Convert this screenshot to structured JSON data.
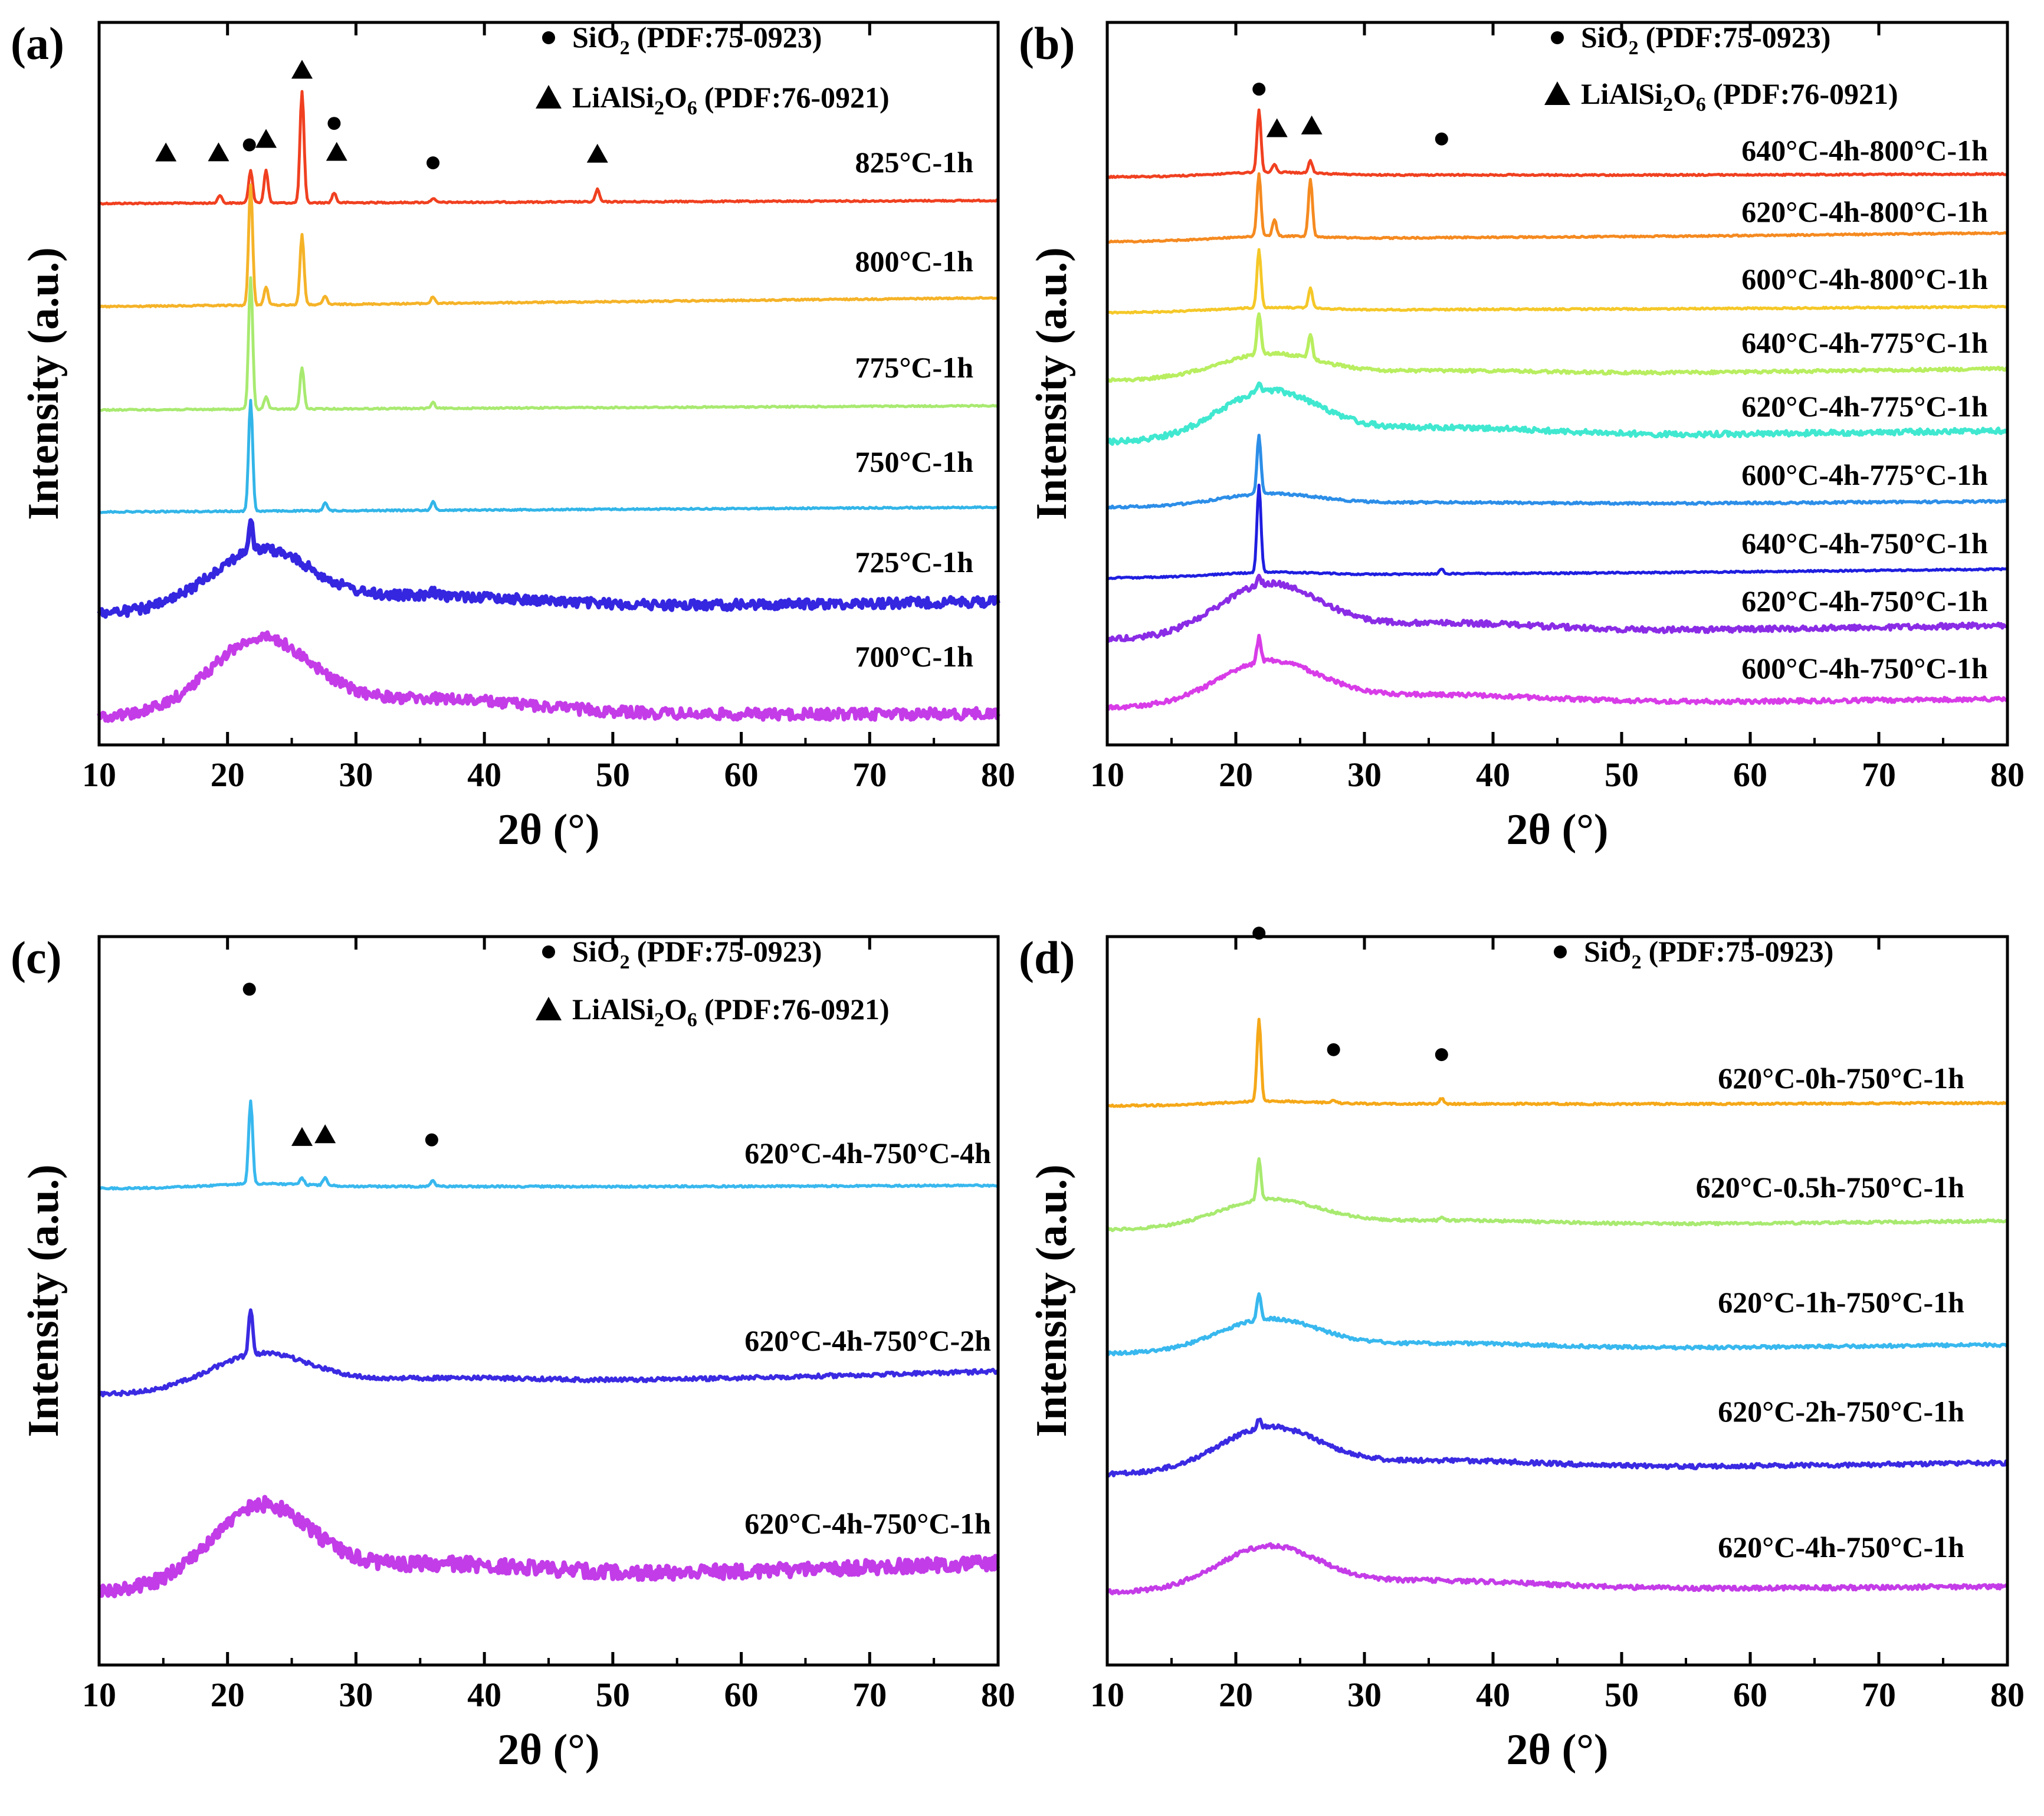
{
  "chart_data": [
    {
      "type": "line",
      "panel": "(a)",
      "xlabel": "2θ (°)",
      "ylabel": "Intensity (a.u.)",
      "xlim": [
        10,
        80
      ],
      "xticks": [
        10,
        20,
        30,
        40,
        50,
        60,
        70,
        80
      ],
      "legend": [
        {
          "marker": "●",
          "name": "SiO",
          "sub": "2",
          "ref": "(PDF:75-0923)"
        },
        {
          "marker": "▲",
          "name": "LiAlSi",
          "sub": "2",
          "name2": "O",
          "sub2": "6",
          "ref": "(PDF:76-0921)"
        }
      ],
      "series": [
        {
          "name": "825°C-1h",
          "color": "#f04020",
          "noise": 0.3,
          "amorph": 0.0,
          "peaks": [
            [
              21.8,
              0.4
            ],
            [
              25.8,
              1.35
            ],
            [
              23.0,
              0.4
            ],
            [
              19.4,
              0.1
            ],
            [
              28.3,
              0.12
            ],
            [
              36.0,
              0.05
            ],
            [
              48.8,
              0.15
            ]
          ],
          "markers": [
            {
              "x": 15.2,
              "type": "tri",
              "level": 1
            },
            {
              "x": 19.3,
              "type": "tri",
              "level": 1
            },
            {
              "x": 21.7,
              "type": "dot",
              "level": 1.3
            },
            {
              "x": 23.0,
              "type": "tri",
              "level": 1.5
            },
            {
              "x": 25.8,
              "type": "tri",
              "level": 4.1
            },
            {
              "x": 28.3,
              "type": "dot",
              "level": 2.1
            },
            {
              "x": 28.5,
              "type": "tri",
              "level": 1
            },
            {
              "x": 36.0,
              "type": "dot",
              "level": 0.6
            },
            {
              "x": 48.8,
              "type": "tri",
              "level": 0.9
            }
          ]
        },
        {
          "name": "800°C-1h",
          "color": "#f5b328",
          "noise": 0.3,
          "amorph": 0.0,
          "peaks": [
            [
              21.8,
              1.45
            ],
            [
              25.8,
              0.85
            ],
            [
              23.0,
              0.22
            ],
            [
              27.6,
              0.1
            ],
            [
              36.0,
              0.08
            ]
          ]
        },
        {
          "name": "775°C-1h",
          "color": "#a8ea70",
          "noise": 0.3,
          "amorph": 0.0,
          "peaks": [
            [
              21.8,
              1.6
            ],
            [
              25.8,
              0.5
            ],
            [
              23.0,
              0.15
            ],
            [
              36.0,
              0.07
            ]
          ]
        },
        {
          "name": "750°C-1h",
          "color": "#32b5e8",
          "noise": 0.3,
          "amorph": 0.0,
          "peaks": [
            [
              21.8,
              1.35
            ],
            [
              27.6,
              0.1
            ],
            [
              36.0,
              0.1
            ]
          ]
        },
        {
          "name": "725°C-1h",
          "color": "#3526e0",
          "noise": 1.2,
          "amorph": 0.75,
          "peaks": [
            [
              21.8,
              0.35
            ],
            [
              36.0,
              0.05
            ]
          ]
        },
        {
          "name": "700°C-1h",
          "color": "#c43ce8",
          "noise": 1.2,
          "amorph": 0.95,
          "peaks": []
        }
      ]
    },
    {
      "type": "line",
      "panel": "(b)",
      "xlabel": "2θ (°)",
      "ylabel": "Intensity (a.u.)",
      "xlim": [
        10,
        80
      ],
      "xticks": [
        10,
        20,
        30,
        40,
        50,
        60,
        70,
        80
      ],
      "legend": [
        {
          "marker": "●",
          "name": "SiO",
          "sub": "2",
          "ref": "(PDF:75-0923)"
        },
        {
          "marker": "▲",
          "name": "LiAlSi",
          "sub": "2",
          "name2": "O",
          "sub2": "6",
          "ref": "(PDF:76-0921)"
        }
      ],
      "series": [
        {
          "name": "640°C-4h-800°C-1h",
          "color": "#f04020",
          "noise": 0.3,
          "amorph": 0.05,
          "peaks": [
            [
              21.8,
              0.75
            ],
            [
              25.8,
              0.15
            ],
            [
              23.0,
              0.1
            ]
          ],
          "markers": [
            {
              "x": 21.8,
              "type": "dot",
              "level": 2.4
            },
            {
              "x": 23.2,
              "type": "tri",
              "level": 0.9
            },
            {
              "x": 25.9,
              "type": "tri",
              "level": 1.0
            },
            {
              "x": 36.0,
              "type": "dot",
              "level": 0.5
            }
          ]
        },
        {
          "name": "620°C-4h-800°C-1h",
          "color": "#f58a20",
          "noise": 0.3,
          "amorph": 0.05,
          "peaks": [
            [
              21.8,
              0.75
            ],
            [
              25.8,
              0.7
            ],
            [
              23.0,
              0.2
            ]
          ]
        },
        {
          "name": "600°C-4h-800°C-1h",
          "color": "#f5c828",
          "noise": 0.3,
          "amorph": 0.05,
          "peaks": [
            [
              21.8,
              0.7
            ],
            [
              25.8,
              0.25
            ]
          ]
        },
        {
          "name": "640°C-4h-775°C-1h",
          "color": "#b8ee60",
          "noise": 0.5,
          "amorph": 0.3,
          "peaks": [
            [
              21.8,
              0.5
            ],
            [
              25.8,
              0.3
            ]
          ]
        },
        {
          "name": "620°C-4h-775°C-1h",
          "color": "#40e8d0",
          "noise": 0.7,
          "amorph": 0.6,
          "peaks": [
            [
              21.8,
              0.1
            ]
          ]
        },
        {
          "name": "600°C-4h-775°C-1h",
          "color": "#2c8ee8",
          "noise": 0.4,
          "amorph": 0.15,
          "peaks": [
            [
              21.8,
              0.7
            ]
          ]
        },
        {
          "name": "640°C-4h-750°C-1h",
          "color": "#1f1ee0",
          "noise": 0.3,
          "amorph": 0.05,
          "peaks": [
            [
              21.8,
              1.05
            ],
            [
              36.0,
              0.06
            ]
          ]
        },
        {
          "name": "620°C-4h-750°C-1h",
          "color": "#8a2ce6",
          "noise": 0.7,
          "amorph": 0.65,
          "peaks": [
            [
              21.8,
              0.1
            ]
          ]
        },
        {
          "name": "600°C-4h-750°C-1h",
          "color": "#d83ce8",
          "noise": 0.6,
          "amorph": 0.55,
          "peaks": [
            [
              21.8,
              0.3
            ]
          ]
        }
      ]
    },
    {
      "type": "line",
      "panel": "(c)",
      "xlabel": "2θ (°)",
      "ylabel": "Intensity (a.u.)",
      "xlim": [
        10,
        80
      ],
      "xticks": [
        10,
        20,
        30,
        40,
        50,
        60,
        70,
        80
      ],
      "legend": [
        {
          "marker": "●",
          "name": "SiO",
          "sub": "2",
          "ref": "(PDF:75-0923)"
        },
        {
          "marker": "▲",
          "name": "LiAlSi",
          "sub": "2",
          "name2": "O",
          "sub2": "6",
          "ref": "(PDF:76-0921)"
        }
      ],
      "series": [
        {
          "name": "620°C-4h-750°C-4h",
          "color": "#38b8ee",
          "noise": 0.35,
          "amorph": 0.05,
          "peaks": [
            [
              21.8,
              1.0
            ],
            [
              25.8,
              0.08
            ],
            [
              27.6,
              0.1
            ],
            [
              36.0,
              0.08
            ]
          ],
          "markers": [
            {
              "x": 21.7,
              "type": "dot",
              "level": 6.6
            },
            {
              "x": 25.8,
              "type": "tri",
              "level": 1.0
            },
            {
              "x": 27.6,
              "type": "tri",
              "level": 1.1
            },
            {
              "x": 35.9,
              "type": "dot",
              "level": 0.9
            }
          ]
        },
        {
          "name": "620°C-4h-750°C-2h",
          "color": "#3a2ae2",
          "noise": 0.6,
          "amorph": 0.45,
          "peaks": [
            [
              21.8,
              0.55
            ]
          ]
        },
        {
          "name": "620°C-4h-750°C-1h",
          "color": "#c23ce8",
          "noise": 1.5,
          "amorph": 1.0,
          "peaks": []
        }
      ]
    },
    {
      "type": "line",
      "panel": "(d)",
      "xlabel": "2θ (°)",
      "ylabel": "Intensity (a.u.)",
      "xlim": [
        10,
        80
      ],
      "xticks": [
        10,
        20,
        30,
        40,
        50,
        60,
        70,
        80
      ],
      "legend": [
        {
          "marker": "●",
          "name": "SiO",
          "sub": "2",
          "ref": "(PDF:75-0923)"
        }
      ],
      "series": [
        {
          "name": "620°C-0h-750°C-1h",
          "color": "#f5a818",
          "noise": 0.35,
          "amorph": 0.05,
          "peaks": [
            [
              21.8,
              1.0
            ],
            [
              27.6,
              0.04
            ],
            [
              36.0,
              0.07
            ]
          ],
          "markers": [
            {
              "x": 21.8,
              "type": "dot",
              "level": 5.6
            },
            {
              "x": 27.6,
              "type": "dot",
              "level": 1.2
            },
            {
              "x": 36.0,
              "type": "dot",
              "level": 1.0
            }
          ]
        },
        {
          "name": "620°C-0.5h-750°C-1h",
          "color": "#a8ea70",
          "noise": 0.4,
          "amorph": 0.35,
          "peaks": [
            [
              21.8,
              0.5
            ],
            [
              36.0,
              0.04
            ]
          ]
        },
        {
          "name": "620°C-1h-750°C-1h",
          "color": "#38b8ee",
          "noise": 0.5,
          "amorph": 0.4,
          "peaks": [
            [
              21.8,
              0.3
            ]
          ]
        },
        {
          "name": "620°C-2h-750°C-1h",
          "color": "#3a2ae2",
          "noise": 0.6,
          "amorph": 0.55,
          "peaks": [
            [
              21.8,
              0.1
            ]
          ]
        },
        {
          "name": "620°C-4h-750°C-1h",
          "color": "#c43ce8",
          "noise": 0.6,
          "amorph": 0.55,
          "peaks": []
        }
      ]
    }
  ]
}
